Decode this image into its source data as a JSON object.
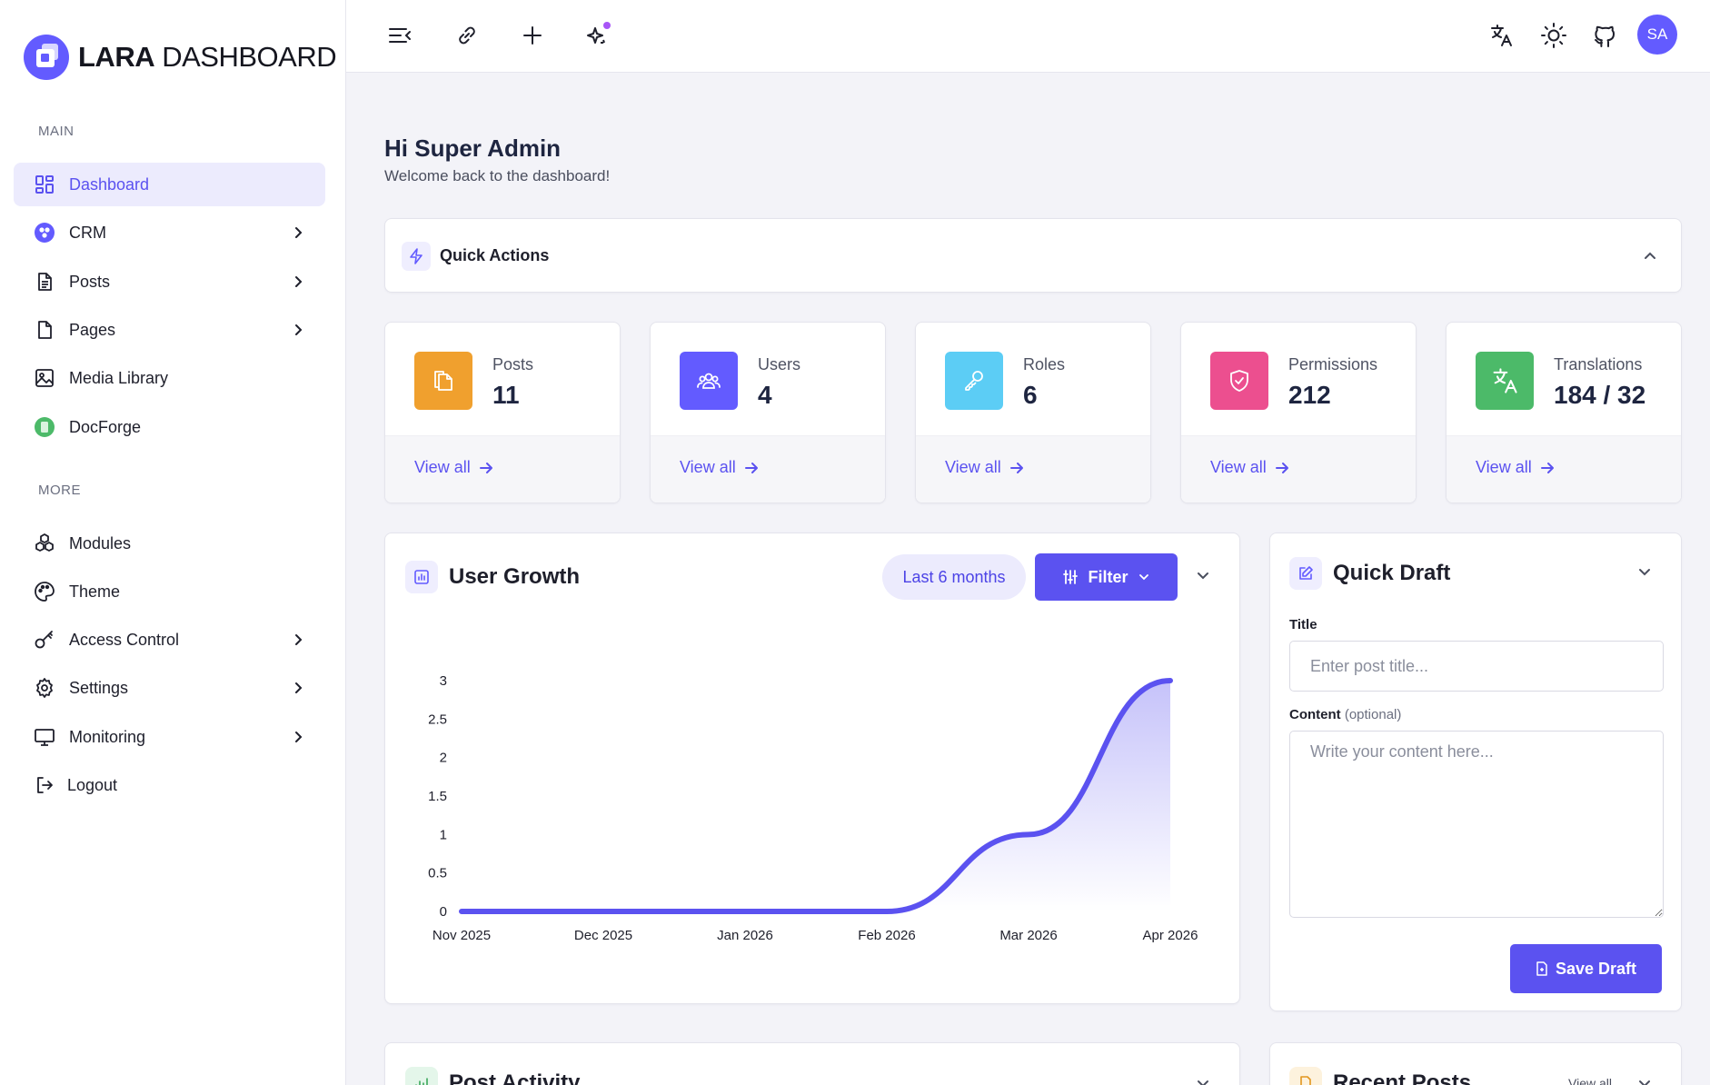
{
  "brand": {
    "name_bold": "LARA",
    "name_rest": " DASHBOARD",
    "accent": "#635bff"
  },
  "sidebar": {
    "main_label": "MAIN",
    "more_label": "MORE",
    "main_items": [
      {
        "label": "Dashboard",
        "icon": "grid-icon",
        "active": true,
        "chevron": false
      },
      {
        "label": "CRM",
        "icon": "crm-icon",
        "chevron": true
      },
      {
        "label": "Posts",
        "icon": "document-icon",
        "chevron": true
      },
      {
        "label": "Pages",
        "icon": "page-icon",
        "chevron": true
      },
      {
        "label": "Media Library",
        "icon": "image-icon",
        "chevron": false
      },
      {
        "label": "DocForge",
        "icon": "docforge-icon",
        "chevron": false
      }
    ],
    "more_items": [
      {
        "label": "Modules",
        "icon": "modules-icon",
        "chevron": false
      },
      {
        "label": "Theme",
        "icon": "palette-icon",
        "chevron": false
      },
      {
        "label": "Access Control",
        "icon": "key-icon",
        "chevron": true
      },
      {
        "label": "Settings",
        "icon": "gear-icon",
        "chevron": true
      },
      {
        "label": "Monitoring",
        "icon": "monitor-icon",
        "chevron": true
      },
      {
        "label": "Logout",
        "icon": "logout-icon",
        "chevron": false
      }
    ]
  },
  "header": {
    "icons": [
      "menu-collapse-icon",
      "link-icon",
      "plus-icon",
      "sparkles-icon",
      "translate-icon",
      "sun-icon",
      "github-icon"
    ],
    "avatar_initials": "SA"
  },
  "greeting": {
    "title": "Hi Super Admin",
    "subtitle": "Welcome back to the dashboard!"
  },
  "quick_actions": {
    "title": "Quick Actions"
  },
  "stats": [
    {
      "label": "Posts",
      "value": "11",
      "link": "View all",
      "color": "#f0a02e",
      "icon": "files-icon"
    },
    {
      "label": "Users",
      "value": "4",
      "link": "View all",
      "color": "#635bff",
      "icon": "users-icon"
    },
    {
      "label": "Roles",
      "value": "6",
      "link": "View all",
      "color": "#5ccdf5",
      "icon": "key-icon"
    },
    {
      "label": "Permissions",
      "value": "212",
      "link": "View all",
      "color": "#ec4f8f",
      "icon": "shield-icon"
    },
    {
      "label": "Translations",
      "value": "184 / 32",
      "link": "View all",
      "color": "#4cba69",
      "icon": "translate-icon"
    }
  ],
  "user_growth": {
    "title": "User Growth",
    "range": "Last 6 months",
    "filter_label": "Filter"
  },
  "chart_data": {
    "type": "area",
    "categories": [
      "Nov 2025",
      "Dec 2025",
      "Jan 2026",
      "Feb 2026",
      "Mar 2026",
      "Apr 2026"
    ],
    "series": [
      {
        "values": [
          0,
          0,
          0,
          0,
          1,
          3
        ]
      }
    ],
    "y_ticks": [
      "0",
      "0.5",
      "1",
      "1.5",
      "2",
      "2.5",
      "3"
    ],
    "ylim": [
      0,
      3
    ],
    "color": "#5b52f0",
    "grid": false,
    "title": "",
    "xlabel": "",
    "ylabel": ""
  },
  "quick_draft": {
    "title": "Quick Draft",
    "title_label": "Title",
    "title_placeholder": "Enter post title...",
    "content_label": "Content",
    "content_optional": "(optional)",
    "content_placeholder": "Write your content here...",
    "save_label": "Save Draft"
  },
  "bottom": {
    "post_activity": "Post Activity",
    "recent_posts": "Recent Posts",
    "recent_view_all": "View all"
  }
}
